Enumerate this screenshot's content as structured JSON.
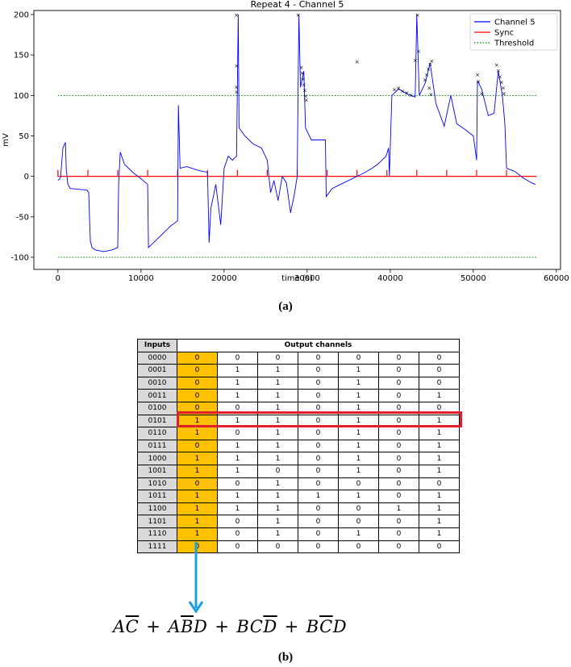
{
  "figure": {
    "caption_a": "(a)",
    "caption_b": "(b)"
  },
  "chart_data": {
    "type": "line",
    "title": "Repeat 4 - Channel 5",
    "xlabel": "time (s)",
    "ylabel": "mV",
    "xlim": [
      -2900,
      60500
    ],
    "ylim": [
      -115,
      205
    ],
    "x_ticks": [
      0,
      10000,
      20000,
      30000,
      40000,
      50000,
      60000
    ],
    "y_ticks": [
      -100,
      -50,
      0,
      50,
      100,
      150,
      200
    ],
    "grid": false,
    "legend_position": "top-right",
    "series": [
      {
        "name": "Channel 5",
        "color": "#0000ff",
        "style": "solid",
        "points": [
          [
            0,
            -5
          ],
          [
            300,
            -2
          ],
          [
            600,
            35
          ],
          [
            900,
            42
          ],
          [
            1000,
            8
          ],
          [
            1200,
            -10
          ],
          [
            1500,
            -15
          ],
          [
            2500,
            -16
          ],
          [
            3500,
            -17
          ],
          [
            3700,
            -20
          ],
          [
            3900,
            -80
          ],
          [
            4100,
            -88
          ],
          [
            4500,
            -91
          ],
          [
            5500,
            -93
          ],
          [
            6500,
            -91
          ],
          [
            7200,
            -88
          ],
          [
            7300,
            -10
          ],
          [
            7500,
            30
          ],
          [
            8000,
            15
          ],
          [
            9000,
            5
          ],
          [
            10000,
            -3
          ],
          [
            10800,
            -10
          ],
          [
            10900,
            -88
          ],
          [
            11500,
            -82
          ],
          [
            12500,
            -72
          ],
          [
            13500,
            -62
          ],
          [
            14400,
            -55
          ],
          [
            14500,
            88
          ],
          [
            14700,
            10
          ],
          [
            15500,
            12
          ],
          [
            17000,
            7
          ],
          [
            18000,
            5
          ],
          [
            18200,
            -82
          ],
          [
            18400,
            -40
          ],
          [
            19000,
            -10
          ],
          [
            19600,
            -60
          ],
          [
            20000,
            10
          ],
          [
            20500,
            25
          ],
          [
            21000,
            20
          ],
          [
            21500,
            25
          ],
          [
            21700,
            200
          ],
          [
            21800,
            60
          ],
          [
            22500,
            50
          ],
          [
            23500,
            40
          ],
          [
            24500,
            35
          ],
          [
            25200,
            20
          ],
          [
            25600,
            -20
          ],
          [
            26000,
            -5
          ],
          [
            26500,
            -30
          ],
          [
            27000,
            0
          ],
          [
            27500,
            -8
          ],
          [
            28000,
            -45
          ],
          [
            28500,
            -20
          ],
          [
            28800,
            0
          ],
          [
            29000,
            200
          ],
          [
            29200,
            110
          ],
          [
            29600,
            130
          ],
          [
            29800,
            60
          ],
          [
            30500,
            45
          ],
          [
            31500,
            45
          ],
          [
            32200,
            45
          ],
          [
            32300,
            -25
          ],
          [
            33000,
            -15
          ],
          [
            34000,
            -10
          ],
          [
            35000,
            -5
          ],
          [
            36000,
            0
          ],
          [
            37000,
            5
          ],
          [
            37800,
            10
          ],
          [
            38500,
            15
          ],
          [
            39000,
            20
          ],
          [
            39500,
            25
          ],
          [
            39800,
            35
          ],
          [
            39900,
            0
          ],
          [
            40200,
            100
          ],
          [
            41000,
            108
          ],
          [
            42000,
            102
          ],
          [
            43000,
            98
          ],
          [
            43200,
            200
          ],
          [
            43500,
            100
          ],
          [
            44200,
            115
          ],
          [
            44800,
            140
          ],
          [
            45500,
            90
          ],
          [
            46500,
            62
          ],
          [
            47300,
            100
          ],
          [
            48000,
            65
          ],
          [
            49000,
            58
          ],
          [
            50000,
            50
          ],
          [
            50400,
            20
          ],
          [
            50500,
            118
          ],
          [
            51000,
            108
          ],
          [
            51800,
            75
          ],
          [
            52500,
            78
          ],
          [
            53000,
            130
          ],
          [
            53500,
            100
          ],
          [
            53800,
            65
          ],
          [
            54000,
            10
          ],
          [
            55000,
            6
          ],
          [
            56000,
            -2
          ],
          [
            57000,
            -8
          ],
          [
            57500,
            -10
          ]
        ],
        "markers": [
          [
            21500,
            200
          ],
          [
            21500,
            137
          ],
          [
            21500,
            111
          ],
          [
            21500,
            105
          ],
          [
            28900,
            200
          ],
          [
            29300,
            135
          ],
          [
            29400,
            128
          ],
          [
            29500,
            121
          ],
          [
            29600,
            114
          ],
          [
            29700,
            107
          ],
          [
            29800,
            100
          ],
          [
            29900,
            95
          ],
          [
            36000,
            142
          ],
          [
            40500,
            108
          ],
          [
            41000,
            110
          ],
          [
            41500,
            106
          ],
          [
            42000,
            104
          ],
          [
            42500,
            101
          ],
          [
            43300,
            200
          ],
          [
            43400,
            155
          ],
          [
            43000,
            144
          ],
          [
            44200,
            120
          ],
          [
            44400,
            126
          ],
          [
            44600,
            133
          ],
          [
            44800,
            139
          ],
          [
            45000,
            143
          ],
          [
            44700,
            110
          ],
          [
            44900,
            102
          ],
          [
            50500,
            126
          ],
          [
            50600,
            118
          ],
          [
            51000,
            103
          ],
          [
            52800,
            138
          ],
          [
            53000,
            131
          ],
          [
            53200,
            124
          ],
          [
            53400,
            117
          ],
          [
            53600,
            110
          ],
          [
            53700,
            103
          ]
        ]
      },
      {
        "name": "Sync",
        "color": "#ff0000",
        "style": "solid",
        "level": 0,
        "pulse_times": [
          0,
          3600,
          7200,
          10800,
          14400,
          18000,
          21600,
          25200,
          28800,
          32400,
          36000,
          39600,
          43200,
          46800,
          50400,
          54000
        ],
        "pulse_height": 8,
        "end_time": 57600
      },
      {
        "name": "Threshold",
        "color": "#008000",
        "style": "dotted",
        "levels": [
          100,
          -100
        ],
        "x_range": [
          0,
          57600
        ]
      }
    ]
  },
  "table": {
    "header": [
      "Inputs",
      "Output channels"
    ],
    "rows": [
      {
        "input": "0000",
        "outputs": [
          "0",
          "0",
          "0",
          "0",
          "0",
          "0",
          "0"
        ]
      },
      {
        "input": "0001",
        "outputs": [
          "0",
          "1",
          "1",
          "0",
          "1",
          "0",
          "0"
        ]
      },
      {
        "input": "0010",
        "outputs": [
          "0",
          "1",
          "1",
          "0",
          "1",
          "0",
          "0"
        ]
      },
      {
        "input": "0011",
        "outputs": [
          "0",
          "1",
          "1",
          "0",
          "1",
          "0",
          "1"
        ]
      },
      {
        "input": "0100",
        "outputs": [
          "0",
          "0",
          "1",
          "0",
          "1",
          "0",
          "0"
        ]
      },
      {
        "input": "0101",
        "outputs": [
          "1",
          "1",
          "1",
          "0",
          "1",
          "0",
          "1"
        ]
      },
      {
        "input": "0110",
        "outputs": [
          "1",
          "0",
          "1",
          "0",
          "1",
          "0",
          "1"
        ]
      },
      {
        "input": "0111",
        "outputs": [
          "0",
          "1",
          "1",
          "0",
          "1",
          "0",
          "1"
        ]
      },
      {
        "input": "1000",
        "outputs": [
          "1",
          "1",
          "1",
          "0",
          "1",
          "0",
          "1"
        ]
      },
      {
        "input": "1001",
        "outputs": [
          "1",
          "1",
          "0",
          "0",
          "1",
          "0",
          "1"
        ]
      },
      {
        "input": "1010",
        "outputs": [
          "0",
          "0",
          "1",
          "0",
          "0",
          "0",
          "0"
        ]
      },
      {
        "input": "1011",
        "outputs": [
          "1",
          "1",
          "1",
          "1",
          "1",
          "0",
          "1"
        ]
      },
      {
        "input": "1100",
        "outputs": [
          "1",
          "1",
          "1",
          "0",
          "0",
          "1",
          "1"
        ]
      },
      {
        "input": "1101",
        "outputs": [
          "1",
          "0",
          "1",
          "0",
          "0",
          "0",
          "1"
        ]
      },
      {
        "input": "1110",
        "outputs": [
          "1",
          "0",
          "1",
          "0",
          "1",
          "0",
          "1"
        ]
      },
      {
        "input": "1111",
        "outputs": [
          "0",
          "0",
          "0",
          "0",
          "0",
          "0",
          "0"
        ]
      }
    ],
    "highlight_column_color": "#ffc000",
    "highlight_row_input": "0101",
    "highlight_row_color": "#e0202a",
    "arrow_color": "#1ba1e2"
  },
  "expression": {
    "terms": [
      [
        {
          "t": "A",
          "bar": false
        },
        {
          "t": "C",
          "bar": true
        }
      ],
      [
        {
          "t": "A",
          "bar": false
        },
        {
          "t": "B",
          "bar": true
        },
        {
          "t": "D",
          "bar": false
        }
      ],
      [
        {
          "t": "B",
          "bar": false
        },
        {
          "t": "C",
          "bar": false
        },
        {
          "t": "D",
          "bar": true
        }
      ],
      [
        {
          "t": "B",
          "bar": false
        },
        {
          "t": "C",
          "bar": true
        },
        {
          "t": "D",
          "bar": false
        }
      ]
    ],
    "operator": "+"
  }
}
